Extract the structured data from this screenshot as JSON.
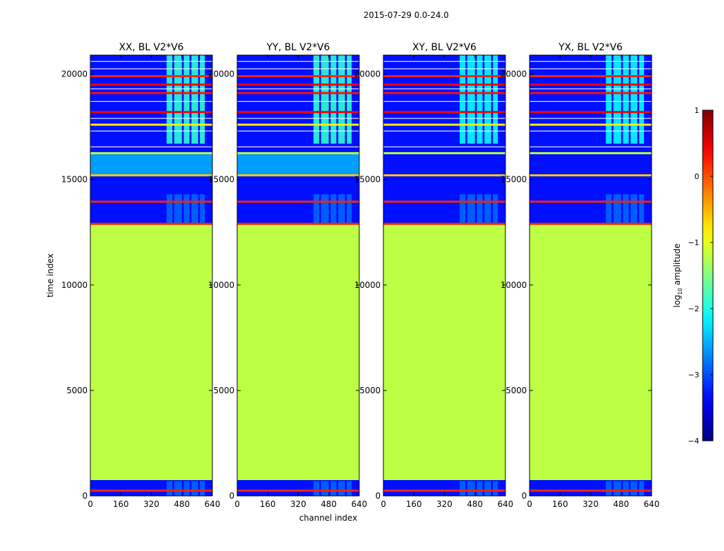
{
  "figure": {
    "suptitle": "2015-07-29 0.0-24.0"
  },
  "chart_data": {
    "type": "heatmap",
    "title": "2015-07-29 0.0-24.0",
    "xlabel": "channel index",
    "ylabel": "time index",
    "xlim": [
      0,
      640
    ],
    "ylim": [
      0,
      20900
    ],
    "x_ticks": [
      "0",
      "160",
      "320",
      "480",
      "640"
    ],
    "y_ticks": [
      "0",
      "5000",
      "10000",
      "15000",
      "20000"
    ],
    "x_tick_values": [
      0,
      160,
      320,
      480,
      640
    ],
    "y_tick_values": [
      0,
      5000,
      10000,
      15000,
      20000
    ],
    "colorbar": {
      "label": "log10 amplitude",
      "label_main": "log",
      "label_sub": "10",
      "label_rest": " amplitude",
      "range": [
        -4,
        1
      ],
      "ticks": [
        "1",
        "0",
        "−1",
        "−2",
        "−3",
        "−4"
      ],
      "tick_values": [
        1,
        0,
        -1,
        -2,
        -3,
        -4
      ]
    },
    "panels": [
      {
        "title": "XX, BL V2*V6",
        "colorful": true
      },
      {
        "title": "YY, BL V2*V6",
        "colorful": true
      },
      {
        "title": "XY, BL V2*V6",
        "colorful": false
      },
      {
        "title": "YX, BL V2*V6",
        "colorful": false
      }
    ],
    "flagged_fill_value": -1.2,
    "background_value": -3.3,
    "segments": [
      {
        "from": 0,
        "to": 750,
        "value": -3.3
      },
      {
        "from": 750,
        "to": 12850,
        "value": -1.2
      },
      {
        "from": 12850,
        "to": 15150,
        "value": -3.3
      },
      {
        "from": 15150,
        "to": 16300,
        "value": -2.6
      },
      {
        "from": 16300,
        "to": 20900,
        "value": -3.3
      }
    ],
    "flag_lines": [
      {
        "t": 250,
        "value": 0.2
      },
      {
        "t": 12900,
        "value": 0.2
      },
      {
        "t": 13950,
        "value": 0.2
      },
      {
        "t": 15200,
        "value": -0.6
      },
      {
        "t": 16250,
        "value": -1.2
      },
      {
        "t": 17600,
        "value": -0.8
      },
      {
        "t": 18200,
        "value": 0.4
      },
      {
        "t": 19100,
        "value": 0.3
      },
      {
        "t": 19500,
        "value": 0.4
      },
      {
        "t": 19900,
        "value": 0.2
      }
    ],
    "rfi_channel_bands": [
      {
        "from": 400,
        "to": 430
      },
      {
        "from": 440,
        "to": 480
      },
      {
        "from": 490,
        "to": 520
      },
      {
        "from": 530,
        "to": 565
      },
      {
        "from": 575,
        "to": 600
      }
    ],
    "rfi_value": -1.9
  }
}
